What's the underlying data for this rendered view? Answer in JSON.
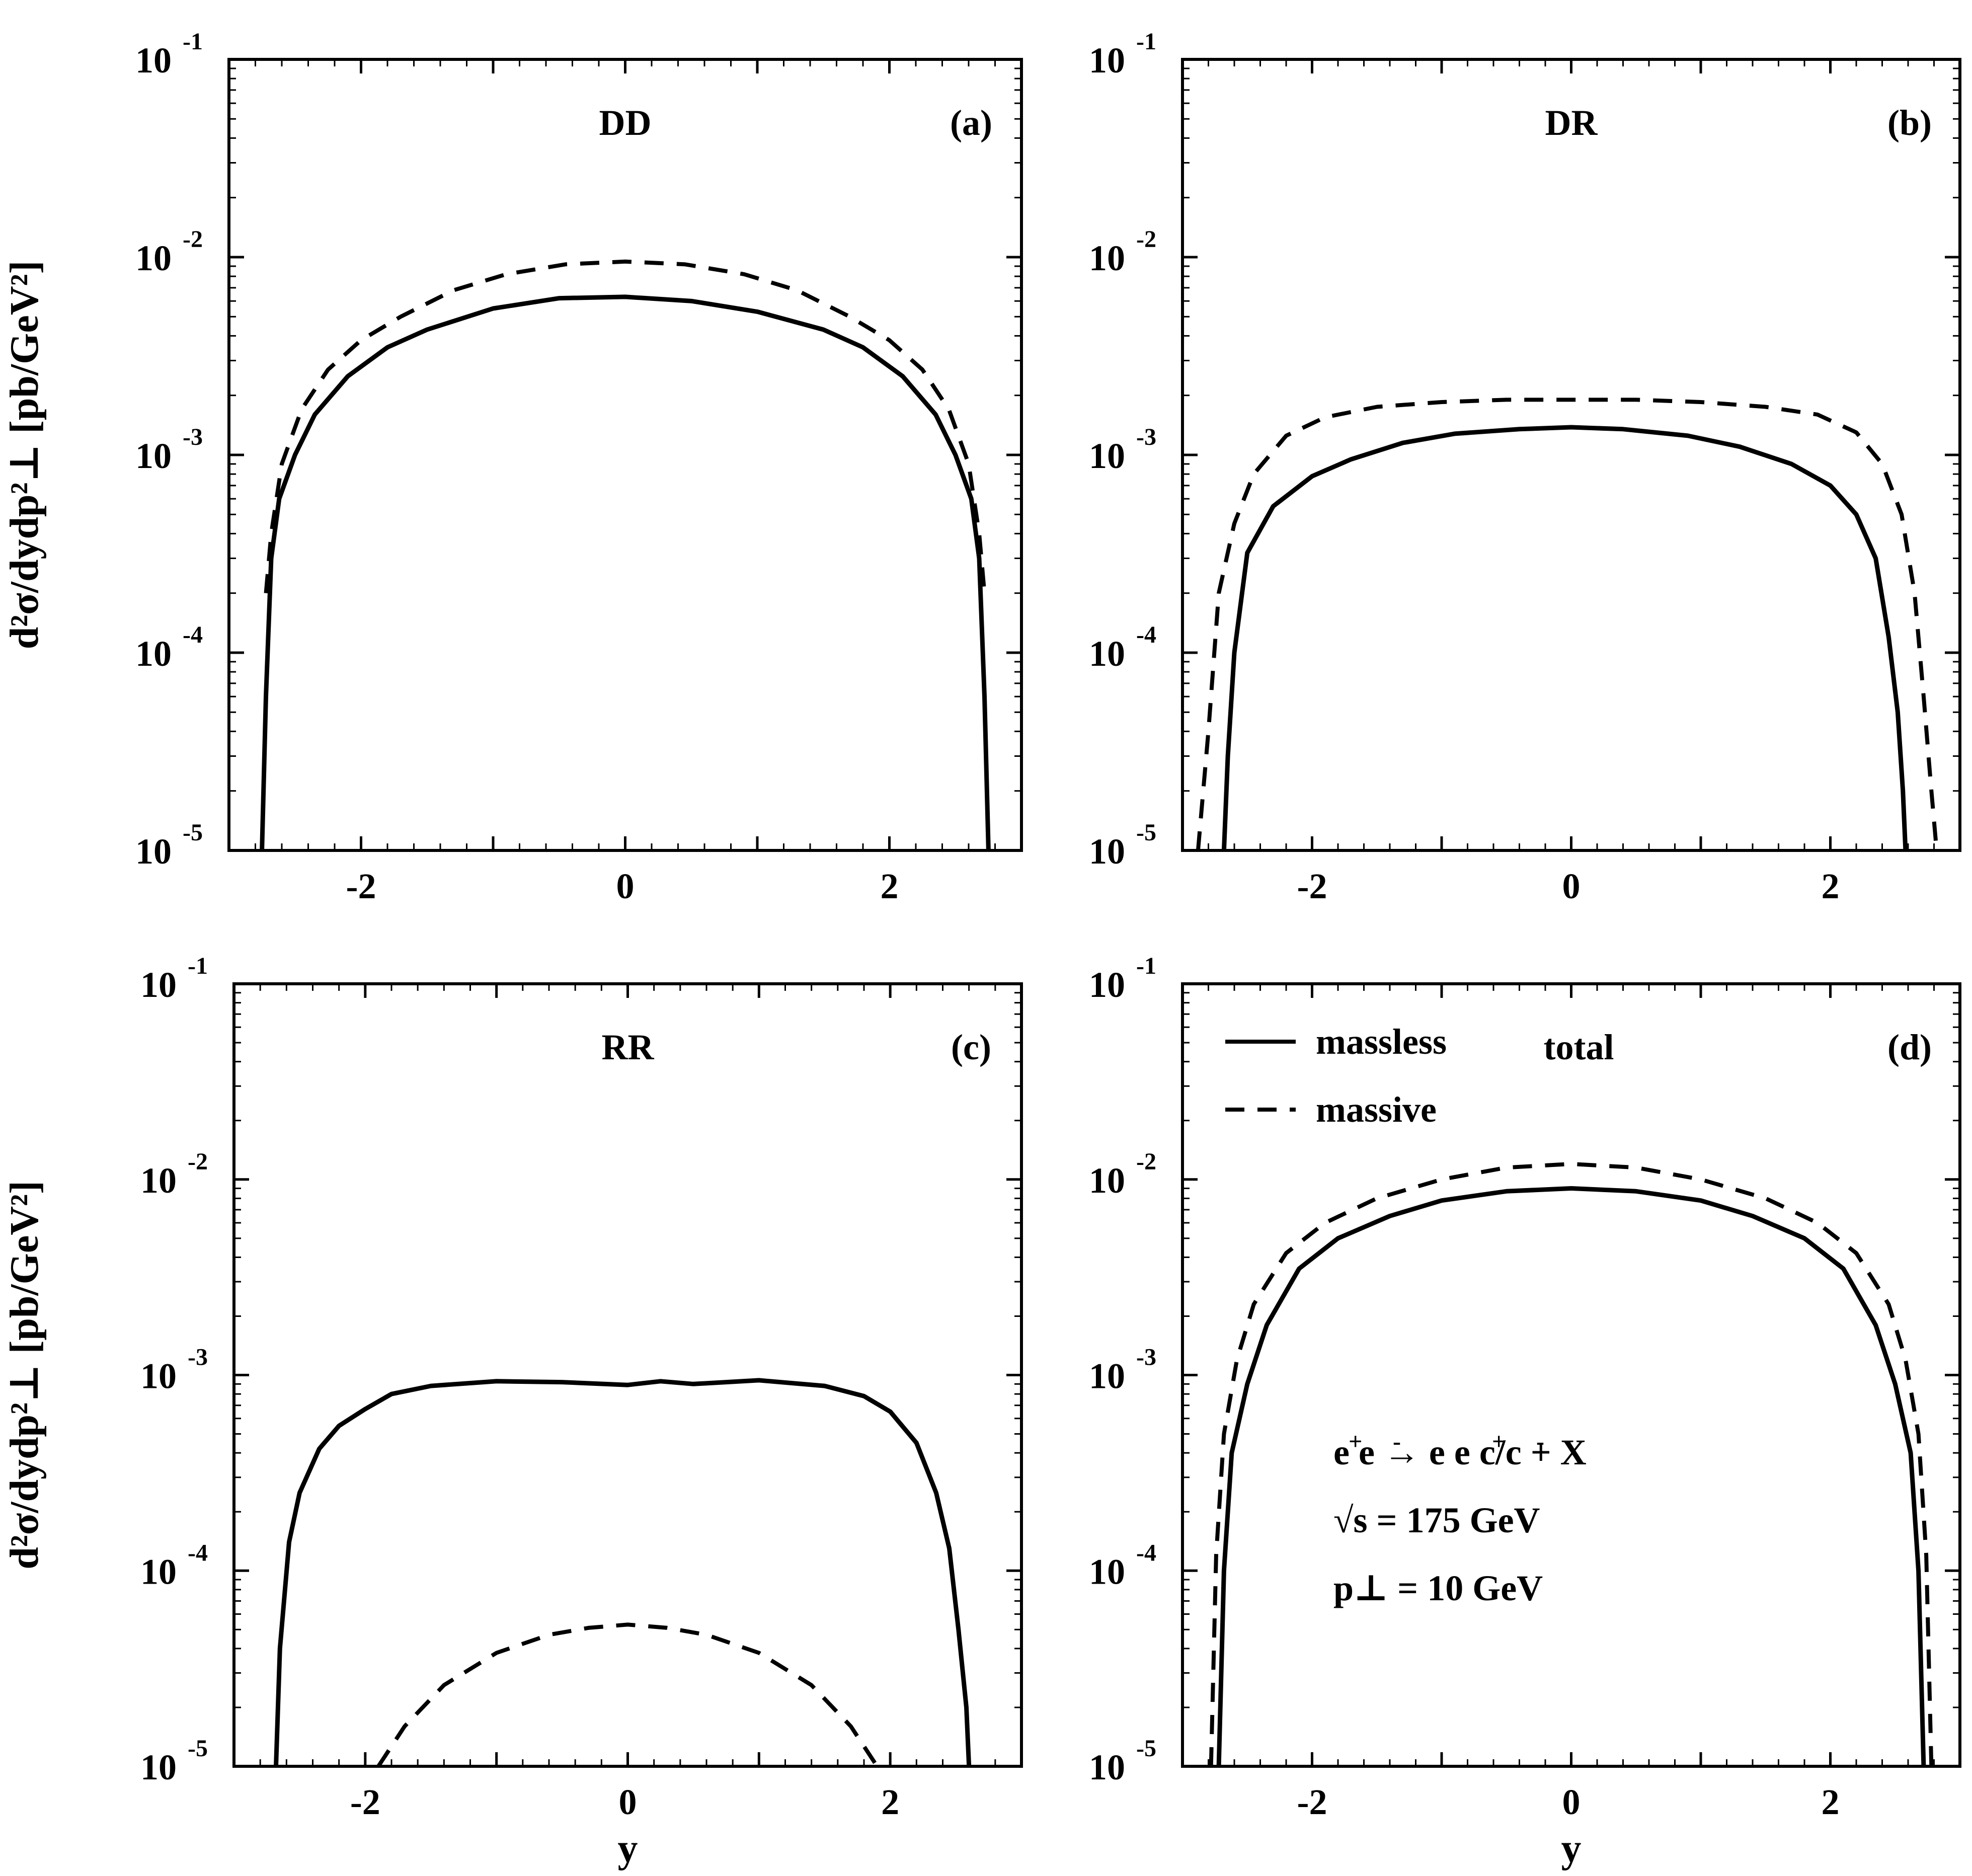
{
  "chart_data": [
    {
      "type": "line",
      "panel": "(a)",
      "title": "DD",
      "xlabel": "",
      "ylabel": "d²σ/dydp²⊥ [pb/GeV²]",
      "xlim": [
        -3,
        3
      ],
      "ylim": [
        1e-05,
        0.1
      ],
      "yscale": "log",
      "xticks": [
        "-2",
        "0",
        "2"
      ],
      "yticks": [
        "10",
        "10",
        "10",
        "10",
        "10"
      ],
      "ytick_exponents": [
        "-5",
        "-4",
        "-3",
        "-2",
        "-1"
      ],
      "series": [
        {
          "style": "solid",
          "x": [
            -2.75,
            -2.72,
            -2.68,
            -2.62,
            -2.5,
            -2.35,
            -2.1,
            -1.8,
            -1.5,
            -1.0,
            -0.5,
            0.0,
            0.5,
            1.0,
            1.5,
            1.8,
            2.1,
            2.35,
            2.5,
            2.62,
            2.68,
            2.72,
            2.75
          ],
          "y": [
            1e-05,
            6e-05,
            0.0003,
            0.0006,
            0.001,
            0.0016,
            0.0025,
            0.0035,
            0.0043,
            0.0055,
            0.0062,
            0.0063,
            0.006,
            0.0053,
            0.0043,
            0.0035,
            0.0025,
            0.0016,
            0.001,
            0.0006,
            0.0003,
            6e-05,
            1e-05
          ]
        },
        {
          "style": "dashed",
          "x": [
            -2.72,
            -2.68,
            -2.6,
            -2.45,
            -2.25,
            -2.0,
            -1.7,
            -1.3,
            -0.9,
            -0.45,
            0.0,
            0.45,
            0.9,
            1.3,
            1.7,
            2.0,
            2.25,
            2.45,
            2.6,
            2.68,
            2.72
          ],
          "y": [
            0.0002,
            0.0004,
            0.0009,
            0.0017,
            0.0027,
            0.0038,
            0.005,
            0.0068,
            0.0082,
            0.0092,
            0.0095,
            0.0092,
            0.0082,
            0.0068,
            0.005,
            0.0038,
            0.0027,
            0.0017,
            0.0009,
            0.0004,
            0.0002
          ]
        }
      ]
    },
    {
      "type": "line",
      "panel": "(b)",
      "title": "DR",
      "xlabel": "",
      "ylabel": "",
      "xlim": [
        -3,
        3
      ],
      "ylim": [
        1e-05,
        0.1
      ],
      "yscale": "log",
      "xticks": [
        "-2",
        "0",
        "2"
      ],
      "yticks": [
        "10",
        "10",
        "10",
        "10",
        "10"
      ],
      "ytick_exponents": [
        "-5",
        "-4",
        "-3",
        "-2",
        "-1"
      ],
      "series": [
        {
          "style": "solid",
          "x": [
            -2.68,
            -2.65,
            -2.6,
            -2.5,
            -2.3,
            -2.0,
            -1.7,
            -1.3,
            -0.9,
            -0.4,
            0.0,
            0.4,
            0.9,
            1.3,
            1.7,
            2.0,
            2.2,
            2.35,
            2.45,
            2.52,
            2.56,
            2.58
          ],
          "y": [
            1e-05,
            3e-05,
            0.0001,
            0.00032,
            0.00055,
            0.00078,
            0.00095,
            0.00115,
            0.00128,
            0.00135,
            0.00138,
            0.00135,
            0.00125,
            0.0011,
            0.0009,
            0.0007,
            0.0005,
            0.0003,
            0.00012,
            5e-05,
            2e-05,
            1e-05
          ]
        },
        {
          "style": "dashed",
          "x": [
            -2.88,
            -2.8,
            -2.72,
            -2.6,
            -2.45,
            -2.2,
            -1.9,
            -1.5,
            -1.0,
            -0.5,
            0.0,
            0.5,
            1.0,
            1.5,
            1.9,
            2.2,
            2.4,
            2.55,
            2.65,
            2.72,
            2.78,
            2.82
          ],
          "y": [
            1e-05,
            4e-05,
            0.0002,
            0.00045,
            0.0008,
            0.00125,
            0.00155,
            0.00175,
            0.00185,
            0.0019,
            0.0019,
            0.0019,
            0.00185,
            0.00175,
            0.0016,
            0.0013,
            0.0009,
            0.0005,
            0.0002,
            6e-05,
            2e-05,
            1e-05
          ]
        }
      ]
    },
    {
      "type": "line",
      "panel": "(c)",
      "title": "RR",
      "xlabel": "y",
      "ylabel": "d²σ/dydp²⊥ [pb/GeV²]",
      "xlim": [
        -3,
        3
      ],
      "ylim": [
        1e-05,
        0.1
      ],
      "yscale": "log",
      "xticks": [
        "-2",
        "0",
        "2"
      ],
      "yticks": [
        "10",
        "10",
        "10",
        "10",
        "10"
      ],
      "ytick_exponents": [
        "-5",
        "-4",
        "-3",
        "-2",
        "-1"
      ],
      "series": [
        {
          "style": "solid",
          "x": [
            -2.68,
            -2.65,
            -2.58,
            -2.5,
            -2.35,
            -2.2,
            -2.0,
            -1.8,
            -1.5,
            -1.0,
            -0.5,
            0.0,
            0.25,
            0.5,
            1.0,
            1.5,
            1.8,
            2.0,
            2.2,
            2.35,
            2.45,
            2.52,
            2.58,
            2.6
          ],
          "y": [
            1e-05,
            4e-05,
            0.00014,
            0.00025,
            0.00042,
            0.00055,
            0.00067,
            0.0008,
            0.00088,
            0.00093,
            0.00092,
            0.00089,
            0.00093,
            0.0009,
            0.00094,
            0.00088,
            0.00078,
            0.00065,
            0.00045,
            0.00025,
            0.00013,
            5e-05,
            2e-05,
            1e-05
          ]
        },
        {
          "style": "dashed",
          "x": [
            -1.9,
            -1.7,
            -1.4,
            -1.0,
            -0.6,
            -0.3,
            0.0,
            0.3,
            0.6,
            1.0,
            1.4,
            1.7,
            1.9
          ],
          "y": [
            1e-05,
            1.6e-05,
            2.6e-05,
            3.8e-05,
            4.7e-05,
            5.1e-05,
            5.3e-05,
            5.1e-05,
            4.7e-05,
            3.8e-05,
            2.6e-05,
            1.6e-05,
            1e-05
          ]
        }
      ]
    },
    {
      "type": "line",
      "panel": "(d)",
      "title": "total",
      "xlabel": "y",
      "ylabel": "",
      "xlim": [
        -3,
        3
      ],
      "ylim": [
        1e-05,
        0.1
      ],
      "yscale": "log",
      "xticks": [
        "-2",
        "0",
        "2"
      ],
      "yticks": [
        "10",
        "10",
        "10",
        "10",
        "10"
      ],
      "ytick_exponents": [
        "-5",
        "-4",
        "-3",
        "-2",
        "-1"
      ],
      "legend": {
        "placement": "top-left",
        "entries": [
          {
            "label": "massless",
            "style": "solid"
          },
          {
            "label": "massive",
            "style": "dashed"
          }
        ]
      },
      "annotation": {
        "process_main": "e e  → e e  c/c + X",
        "ep1": "+",
        "em1": "-",
        "ep2": "+",
        "em2": "-",
        "energy": "√s = 175 GeV",
        "pt": "p⊥ = 10 GeV"
      },
      "series": [
        {
          "name": "massless",
          "style": "solid",
          "x": [
            -2.72,
            -2.68,
            -2.62,
            -2.5,
            -2.35,
            -2.1,
            -1.8,
            -1.4,
            -1.0,
            -0.5,
            0.0,
            0.5,
            1.0,
            1.4,
            1.8,
            2.1,
            2.35,
            2.5,
            2.62,
            2.68,
            2.72
          ],
          "y": [
            1e-05,
            0.0001,
            0.0004,
            0.0009,
            0.0018,
            0.0035,
            0.005,
            0.0065,
            0.0078,
            0.0087,
            0.009,
            0.0087,
            0.0078,
            0.0065,
            0.005,
            0.0035,
            0.0018,
            0.0009,
            0.0004,
            0.0001,
            1e-05
          ]
        },
        {
          "name": "massive",
          "style": "dashed",
          "x": [
            -2.78,
            -2.74,
            -2.68,
            -2.58,
            -2.45,
            -2.2,
            -1.9,
            -1.5,
            -1.0,
            -0.5,
            0.0,
            0.5,
            1.0,
            1.5,
            1.9,
            2.2,
            2.45,
            2.58,
            2.68,
            2.74,
            2.78
          ],
          "y": [
            1e-05,
            0.00012,
            0.0005,
            0.0012,
            0.0023,
            0.0042,
            0.006,
            0.008,
            0.01,
            0.0115,
            0.012,
            0.0115,
            0.01,
            0.008,
            0.006,
            0.0042,
            0.0023,
            0.0012,
            0.0005,
            0.00012,
            1e-05
          ]
        }
      ]
    }
  ]
}
